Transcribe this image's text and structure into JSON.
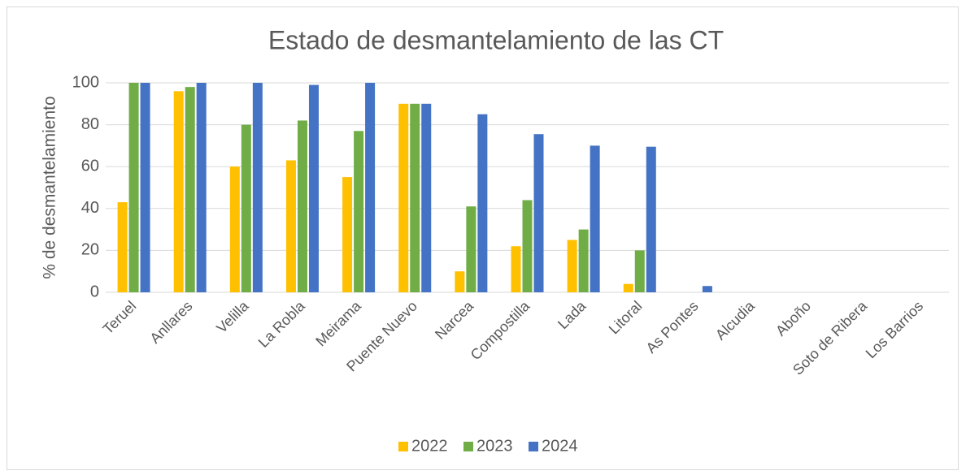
{
  "chart_data": {
    "type": "bar",
    "title": "Estado de desmantelamiento de las CT",
    "y_label": "% de desmantelamiento",
    "categories": [
      "Teruel",
      "Anllares",
      "Velilla",
      "La Robla",
      "Meirama",
      "Puente Nuevo",
      "Narcea",
      "Compostilla",
      "Lada",
      "Litoral",
      "As Pontes",
      "Alcudia",
      "Aboño",
      "Soto de Ribera",
      "Los Barrios"
    ],
    "series": [
      {
        "name": "2022",
        "color": "#ffc000",
        "values": [
          43,
          96,
          60,
          63,
          55,
          90,
          10,
          22,
          25,
          4,
          0,
          0,
          0,
          0,
          0
        ]
      },
      {
        "name": "2023",
        "color": "#70ad47",
        "values": [
          100,
          98,
          80,
          82,
          77,
          90,
          41,
          44,
          30,
          20,
          0,
          0,
          0,
          0,
          0
        ]
      },
      {
        "name": "2024",
        "color": "#4472c4",
        "values": [
          100,
          100,
          100,
          99,
          100,
          90,
          85,
          75.5,
          70,
          69.5,
          3,
          0,
          0,
          0,
          0
        ]
      }
    ],
    "ylim": [
      0,
      100
    ],
    "yticks": [
      0,
      20,
      40,
      60,
      80,
      100
    ],
    "grid": true,
    "legend": "bottom"
  }
}
